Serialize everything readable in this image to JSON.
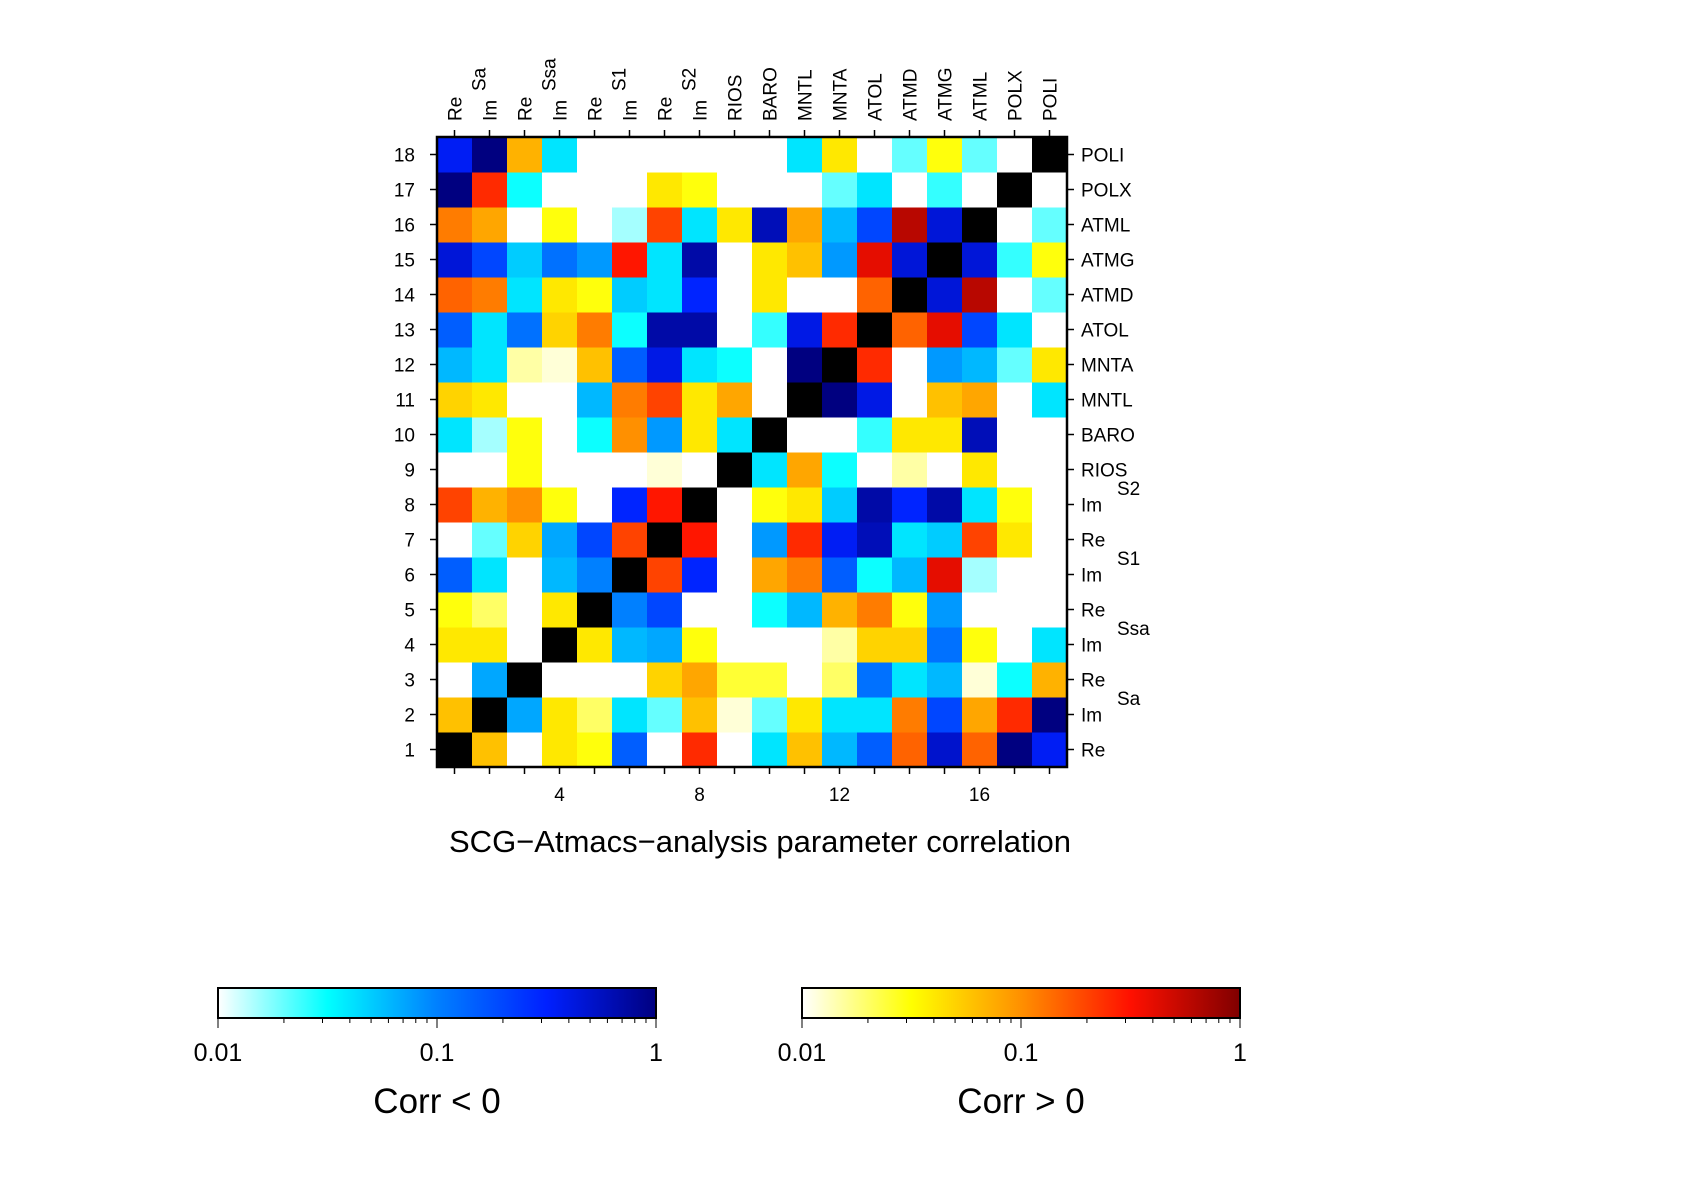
{
  "chart_data": {
    "type": "heatmap",
    "title": "SCG−Atmacs−analysis parameter correlation",
    "n": 18,
    "row_numbers": [
      "1",
      "2",
      "3",
      "4",
      "5",
      "6",
      "7",
      "8",
      "9",
      "10",
      "11",
      "12",
      "13",
      "14",
      "15",
      "16",
      "17",
      "18"
    ],
    "x_ticks": [
      {
        "value": 4,
        "label": "4"
      },
      {
        "value": 8,
        "label": "8"
      },
      {
        "value": 12,
        "label": "12"
      },
      {
        "value": 16,
        "label": "16"
      }
    ],
    "top_labels": [
      "Re",
      "Im",
      "Re",
      "Im",
      "Re",
      "Im",
      "Re",
      "Im",
      "RIOS",
      "BARO",
      "MNTL",
      "MNTA",
      "ATOL",
      "ATMD",
      "ATMG",
      "ATML",
      "POLX",
      "POLI"
    ],
    "top_groups": [
      {
        "label": "Sa",
        "index": 1
      },
      {
        "label": "Ssa",
        "index": 3
      },
      {
        "label": "S1",
        "index": 5
      },
      {
        "label": "S2",
        "index": 7
      }
    ],
    "right_labels": [
      "Re",
      "Im",
      "Re",
      "Im",
      "Re",
      "Im",
      "Re",
      "Im",
      "RIOS",
      "BARO",
      "MNTL",
      "MNTA",
      "ATOL",
      "ATMD",
      "ATMG",
      "ATML",
      "POLX",
      "POLI"
    ],
    "right_groups": [
      {
        "label": "Sa",
        "index": 1
      },
      {
        "label": "Ssa",
        "index": 3
      },
      {
        "label": "S1",
        "index": 5
      },
      {
        "label": "S2",
        "index": 7
      }
    ],
    "value_scale": "log",
    "diagonal_color": "#000000",
    "values": [
      [
        1.0,
        0.06,
        0.0,
        0.04,
        0.03,
        -0.15,
        0.0,
        0.25,
        0.0,
        -0.04,
        0.06,
        -0.06,
        -0.15,
        0.15,
        -0.5,
        0.15,
        -1.0,
        -0.35
      ],
      [
        0.06,
        1.0,
        -0.07,
        0.04,
        0.02,
        -0.04,
        -0.02,
        0.06,
        0.012,
        -0.02,
        0.04,
        -0.04,
        -0.04,
        0.12,
        -0.2,
        0.08,
        0.25,
        -1.0
      ],
      [
        0.0,
        -0.07,
        1.0,
        0.0,
        0.0,
        0.0,
        0.05,
        0.08,
        0.025,
        0.025,
        0.0,
        0.02,
        -0.12,
        -0.04,
        -0.06,
        0.012,
        -0.03,
        0.07
      ],
      [
        0.04,
        0.04,
        0.0,
        1.0,
        0.04,
        -0.06,
        -0.07,
        0.03,
        0.0,
        0.0,
        0.0,
        0.015,
        0.05,
        0.05,
        -0.12,
        0.03,
        0.0,
        -0.04
      ],
      [
        0.03,
        0.02,
        0.0,
        0.04,
        1.0,
        -0.1,
        -0.2,
        0.0,
        0.0,
        -0.03,
        -0.06,
        0.07,
        0.12,
        0.03,
        -0.08,
        0.0,
        0.0,
        0.0
      ],
      [
        -0.15,
        -0.04,
        0.0,
        -0.06,
        -0.1,
        1.0,
        0.2,
        -0.3,
        0.0,
        0.08,
        0.12,
        -0.15,
        -0.03,
        -0.06,
        0.4,
        -0.015,
        0.0,
        0.0
      ],
      [
        0.0,
        -0.02,
        0.05,
        -0.07,
        -0.2,
        0.2,
        1.0,
        0.3,
        0.01,
        -0.08,
        0.25,
        -0.35,
        -0.6,
        -0.04,
        -0.05,
        0.2,
        0.04,
        0.0
      ],
      [
        0.2,
        0.07,
        0.1,
        0.03,
        0.0,
        -0.3,
        0.3,
        1.0,
        0.0,
        0.03,
        0.04,
        -0.05,
        -0.7,
        -0.3,
        -0.7,
        -0.04,
        0.03,
        -0.01
      ],
      [
        0.0,
        0.01,
        0.03,
        0.0,
        0.0,
        0.0,
        0.012,
        0.0,
        1.0,
        -0.04,
        0.08,
        -0.03,
        0.0,
        0.015,
        0.0,
        0.04,
        0.0,
        0.0
      ],
      [
        -0.04,
        -0.015,
        0.03,
        0.0,
        -0.03,
        0.1,
        -0.08,
        0.04,
        -0.04,
        1.0,
        0.0,
        0.0,
        -0.025,
        0.04,
        0.04,
        -0.6,
        -0.01,
        0.0
      ],
      [
        0.05,
        0.04,
        0.0,
        0.0,
        -0.06,
        0.12,
        0.2,
        0.04,
        0.08,
        0.0,
        1.0,
        -1.0,
        -0.4,
        0.0,
        0.06,
        0.08,
        0.01,
        -0.04
      ],
      [
        -0.06,
        -0.04,
        0.015,
        0.012,
        0.06,
        -0.15,
        -0.4,
        -0.04,
        -0.03,
        0.0,
        -1.0,
        1.0,
        0.25,
        0.0,
        -0.08,
        -0.06,
        -0.02,
        0.04
      ],
      [
        -0.15,
        -0.04,
        -0.12,
        0.05,
        0.12,
        -0.03,
        -0.7,
        -0.7,
        0.0,
        -0.025,
        -0.4,
        0.25,
        1.0,
        0.15,
        0.4,
        -0.2,
        -0.04,
        0.0
      ],
      [
        0.15,
        0.12,
        -0.04,
        0.04,
        0.03,
        -0.05,
        -0.04,
        -0.3,
        0.01,
        0.04,
        0.0,
        0.0,
        0.15,
        1.0,
        -0.45,
        0.6,
        0.0,
        -0.02
      ],
      [
        -0.45,
        -0.2,
        -0.05,
        -0.12,
        -0.08,
        0.3,
        -0.04,
        -0.7,
        0.0,
        0.04,
        0.06,
        -0.08,
        0.4,
        -0.45,
        1.0,
        -0.45,
        -0.025,
        0.03
      ],
      [
        0.12,
        0.08,
        0.01,
        0.03,
        0.0,
        -0.015,
        0.2,
        -0.04,
        0.04,
        -0.6,
        0.08,
        -0.06,
        -0.2,
        0.6,
        -0.45,
        1.0,
        0.0,
        -0.02
      ],
      [
        -1.0,
        0.25,
        -0.03,
        0.0,
        0.0,
        0.0,
        0.04,
        0.03,
        0.0,
        -0.01,
        0.01,
        -0.02,
        -0.04,
        0.0,
        -0.025,
        0.0,
        1.0,
        -0.01
      ],
      [
        -0.35,
        -1.0,
        0.07,
        -0.04,
        0.0,
        0.0,
        0.0,
        -0.01,
        0.0,
        0.0,
        -0.04,
        0.04,
        0.0,
        -0.02,
        0.03,
        -0.02,
        -0.01,
        1.0
      ]
    ],
    "colorbars": [
      {
        "id": "neg",
        "label": "Corr < 0",
        "scale": "log",
        "range": [
          0.01,
          1
        ],
        "tick_labels": [
          {
            "value": 0.01,
            "label": "0.01"
          },
          {
            "value": 0.1,
            "label": "0.1"
          },
          {
            "value": 1,
            "label": "1"
          }
        ],
        "colors": [
          "#ffffff",
          "#00ffff",
          "#0080ff",
          "#0020ff",
          "#000080"
        ]
      },
      {
        "id": "pos",
        "label": "Corr > 0",
        "scale": "log",
        "range": [
          0.01,
          1
        ],
        "tick_labels": [
          {
            "value": 0.01,
            "label": "0.01"
          },
          {
            "value": 0.1,
            "label": "0.1"
          },
          {
            "value": 1,
            "label": "1"
          }
        ],
        "colors": [
          "#ffffff",
          "#ffff00",
          "#ff9000",
          "#ff1000",
          "#800000"
        ]
      }
    ]
  }
}
